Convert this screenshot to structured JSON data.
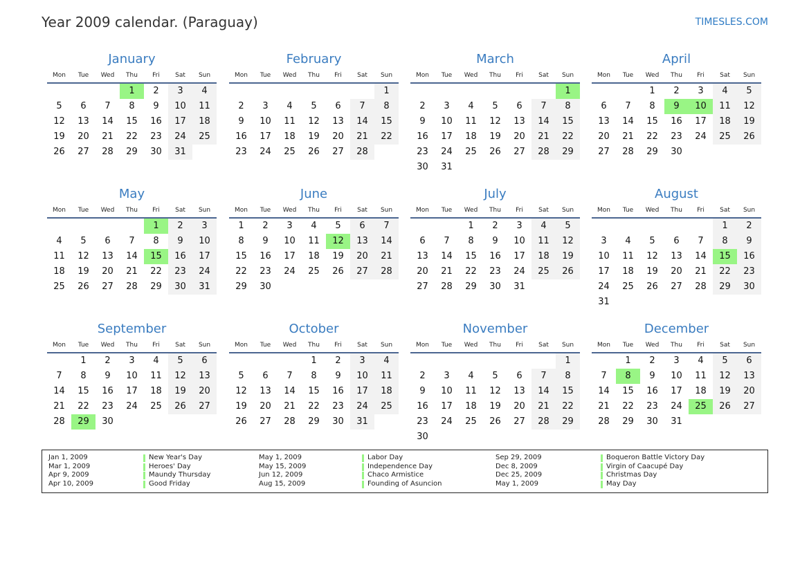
{
  "header": {
    "title": "Year 2009 calendar. (Paraguay)",
    "brand": "TIMESLES.COM"
  },
  "calendar": {
    "year": 2009,
    "weekdays": [
      "Mon",
      "Tue",
      "Wed",
      "Thu",
      "Fri",
      "Sat",
      "Sun"
    ],
    "months": [
      "January",
      "February",
      "March",
      "April",
      "May",
      "June",
      "July",
      "August",
      "September",
      "October",
      "November",
      "December"
    ],
    "holiday_color": "#99f585",
    "weekend_color": "#f2f2f2",
    "highlighted": [
      [
        1,
        1
      ],
      [
        3,
        1
      ],
      [
        4,
        9
      ],
      [
        4,
        10
      ],
      [
        5,
        1
      ],
      [
        5,
        15
      ],
      [
        6,
        12
      ],
      [
        8,
        15
      ],
      [
        9,
        29
      ],
      [
        12,
        8
      ],
      [
        12,
        25
      ]
    ]
  },
  "legend": [
    {
      "date": "Jan 1, 2009",
      "name": "New Year's Day"
    },
    {
      "date": "Mar 1, 2009",
      "name": "Heroes' Day"
    },
    {
      "date": "Apr 9, 2009",
      "name": "Maundy Thursday"
    },
    {
      "date": "Apr 10, 2009",
      "name": "Good Friday"
    },
    {
      "date": "May 1, 2009",
      "name": "Labor Day"
    },
    {
      "date": "May 15, 2009",
      "name": "Independence Day"
    },
    {
      "date": "Jun 12, 2009",
      "name": "Chaco Armistice"
    },
    {
      "date": "Aug 15, 2009",
      "name": "Founding of Asuncion"
    },
    {
      "date": "Sep 29, 2009",
      "name": "Boqueron Battle Victory Day"
    },
    {
      "date": "Dec 8, 2009",
      "name": "Virgin of Caacupé Day"
    },
    {
      "date": "Dec 25, 2009",
      "name": "Christmas Day"
    },
    {
      "date": "May 1, 2009",
      "name": "May Day"
    }
  ]
}
